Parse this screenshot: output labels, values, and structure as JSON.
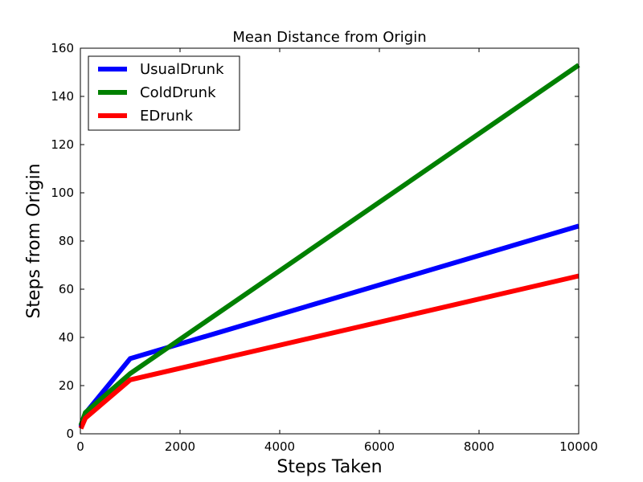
{
  "chart_data": {
    "type": "line",
    "title": "Mean Distance from Origin",
    "xlabel": "Steps Taken",
    "ylabel": "Steps from Origin",
    "xlim": [
      0,
      10000
    ],
    "ylim": [
      0,
      160
    ],
    "xticks": [
      0,
      2000,
      4000,
      6000,
      8000,
      10000
    ],
    "yticks": [
      0,
      20,
      40,
      60,
      80,
      100,
      120,
      140,
      160
    ],
    "grid": false,
    "legend_position": "top-left",
    "x": [
      10,
      100,
      1000,
      10000
    ],
    "series": [
      {
        "name": "UsualDrunk",
        "color": "#0000ff",
        "values": [
          2.8,
          8.5,
          31.2,
          86.2
        ]
      },
      {
        "name": "ColdDrunk",
        "color": "#008000",
        "values": [
          3.5,
          8.8,
          25.0,
          153.0
        ]
      },
      {
        "name": "EDrunk",
        "color": "#ff0000",
        "values": [
          2.2,
          6.5,
          22.4,
          65.5
        ]
      }
    ]
  }
}
